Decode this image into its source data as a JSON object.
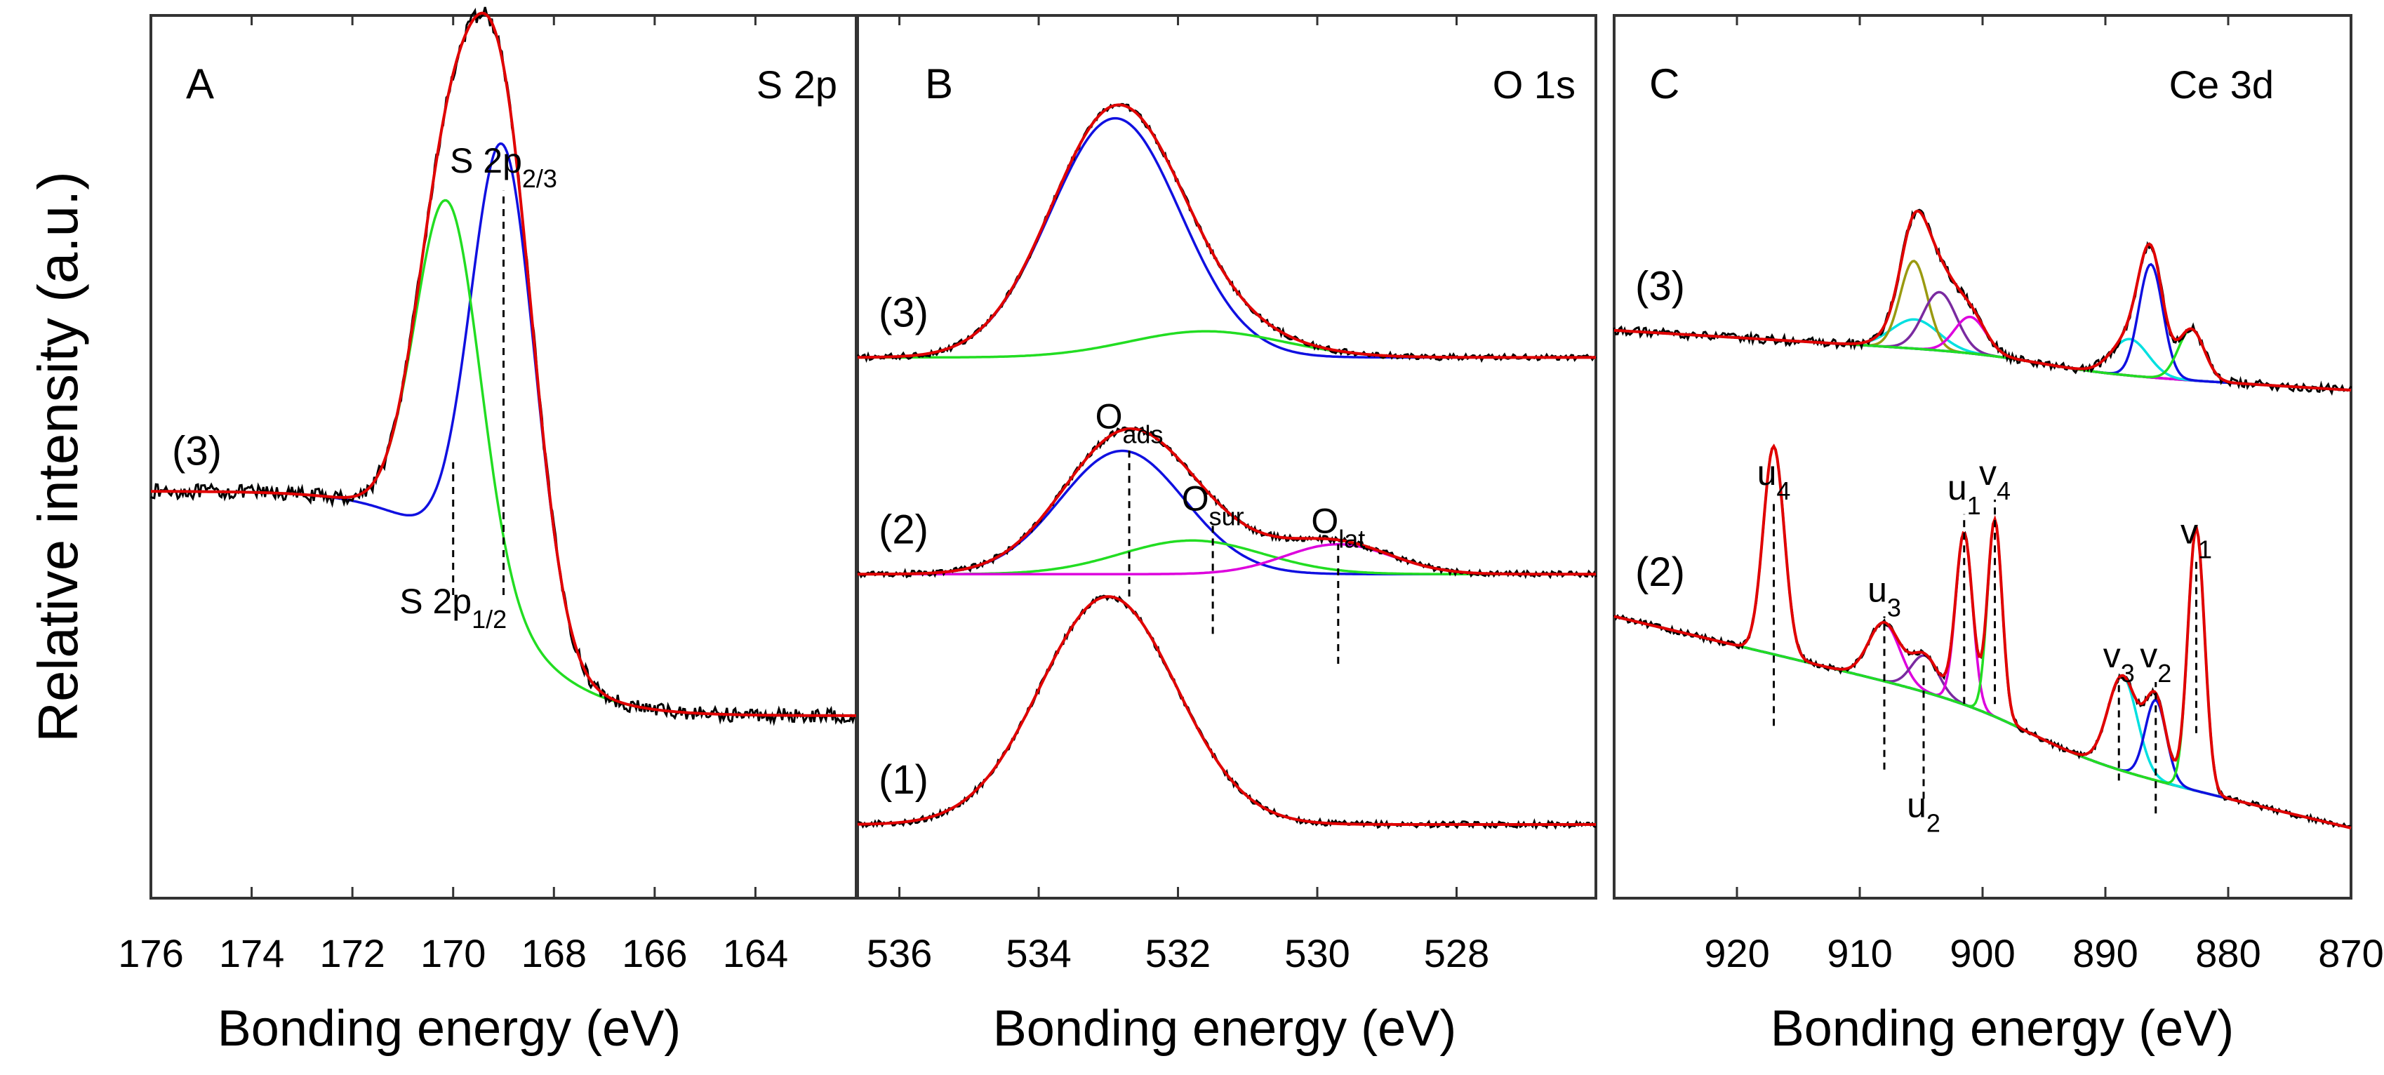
{
  "figure": {
    "ylabel": "Relative intensity (a.u.)"
  },
  "colors": {
    "measured": "#000000",
    "envelope": "#e00000",
    "blue": "#1010e0",
    "green": "#22dd22",
    "magenta": "#dd00dd",
    "cyan": "#00e0e0",
    "olive": "#9a9a10",
    "purple": "#7a2aa0",
    "axis": "#333333"
  },
  "chart_data": [
    {
      "type": "line",
      "panel": "A",
      "region": "S 2p",
      "xlabel": "Bonding energy (eV)",
      "xlim": [
        176,
        162
      ],
      "xticks": [
        176,
        174,
        172,
        170,
        168,
        166,
        164
      ],
      "x_reversed": true,
      "y_units": "relative intensity (a.u., normalized 0-1)",
      "ylim": [
        0,
        1
      ],
      "baseline_left": 0.372,
      "baseline_right": 0.0,
      "spectra": [
        {
          "label": "(3)",
          "offset": 0.0,
          "noise": 0.012,
          "components": [
            {
              "color": "blue",
              "center": 169.0,
              "fwhm": 1.5,
              "height": 0.78
            },
            {
              "color": "green",
              "center": 170.1,
              "fwhm": 1.5,
              "height": 0.58
            }
          ]
        }
      ],
      "annotations": [
        {
          "text": "S 2p",
          "sub": "2/3",
          "x": 169.0,
          "marker_from": 0.2,
          "marker_to": 0.87,
          "label_y": 0.9
        },
        {
          "text": "S 2p",
          "sub": "1/2",
          "x": 170.0,
          "marker_from": 0.2,
          "marker_to": 0.42,
          "label_y": 0.17
        }
      ]
    },
    {
      "type": "line",
      "panel": "B",
      "region": "O 1s",
      "xlabel": "Bonding energy (eV)",
      "xlim": [
        536.6,
        526.0
      ],
      "xticks": [
        536,
        534,
        532,
        530,
        528
      ],
      "x_reversed": true,
      "y_units": "relative intensity (a.u., normalized 0-1)",
      "ylim": [
        0,
        1
      ],
      "baseline_left": 0.0,
      "baseline_right": 0.0,
      "spectra": [
        {
          "label": "(3)",
          "offset": 0.625,
          "noise": 0.004,
          "components": [
            {
              "color": "blue",
              "center": 532.9,
              "fwhm": 2.2,
              "height": 0.32
            },
            {
              "color": "green",
              "center": 531.6,
              "fwhm": 2.6,
              "height": 0.035
            }
          ]
        },
        {
          "label": "(2)",
          "offset": 0.335,
          "noise": 0.004,
          "components": [
            {
              "color": "blue",
              "center": 532.8,
              "fwhm": 2.1,
              "height": 0.165
            },
            {
              "color": "green",
              "center": 531.8,
              "fwhm": 2.4,
              "height": 0.045
            },
            {
              "color": "magenta",
              "center": 529.7,
              "fwhm": 1.8,
              "height": 0.04
            }
          ]
        },
        {
          "label": "(1)",
          "offset": 0.0,
          "noise": 0.004,
          "components": [
            {
              "color": "red",
              "center": 533.0,
              "fwhm": 2.3,
              "height": 0.305
            }
          ]
        }
      ],
      "annotations": [
        {
          "text": "O",
          "sub": "ads",
          "x": 532.7,
          "marker_from": 0.305,
          "marker_to": 0.505,
          "label_y": 0.53
        },
        {
          "text": "O",
          "sub": "sur",
          "x": 531.5,
          "marker_from": 0.255,
          "marker_to": 0.4,
          "label_y": 0.42
        },
        {
          "text": "O",
          "sub": "lat",
          "x": 529.7,
          "marker_from": 0.215,
          "marker_to": 0.375,
          "label_y": 0.39
        }
      ]
    },
    {
      "type": "line",
      "panel": "C",
      "region": "Ce 3d",
      "xlabel": "Bonding energy (eV)",
      "xlim": [
        930.0,
        870.0
      ],
      "xticks": [
        920,
        910,
        900,
        890,
        880,
        870
      ],
      "x_reversed": true,
      "y_units": "relative intensity (a.u., normalized 0-1)",
      "ylim": [
        0,
        1
      ],
      "baseline_left": 0.0,
      "baseline_right": 0.0,
      "spectra": [
        {
          "label": "(3)",
          "offset": 0.6,
          "baseline_left": 0.06,
          "baseline_right": 0.0,
          "baseline_step": {
            "center": 895.0,
            "width": 3.0,
            "height": 0.022
          },
          "noise": 0.006,
          "components": [
            {
              "color": "cyan",
              "center": 905.5,
              "fwhm": 4.5,
              "height": 0.04
            },
            {
              "color": "olive",
              "center": 905.6,
              "fwhm": 2.6,
              "height": 0.12
            },
            {
              "color": "purple",
              "center": 903.5,
              "fwhm": 3.2,
              "height": 0.08
            },
            {
              "color": "magenta",
              "center": 901.0,
              "fwhm": 3.0,
              "height": 0.05
            },
            {
              "color": "cyan",
              "center": 888.0,
              "fwhm": 3.5,
              "height": 0.05
            },
            {
              "color": "blue",
              "center": 886.3,
              "fwhm": 2.3,
              "height": 0.155
            },
            {
              "color": "green",
              "center": 883.0,
              "fwhm": 2.5,
              "height": 0.07
            }
          ]
        },
        {
          "label": "(2)",
          "offset": 0.0,
          "baseline_left": 0.24,
          "baseline_right": 0.0,
          "baseline_step": {
            "center": 896.0,
            "width": 3.0,
            "height": 0.05
          },
          "noise": 0.004,
          "components": [
            {
              "color": "green",
              "center": 917.0,
              "fwhm": 2.0,
              "height": 0.285
            },
            {
              "color": "magenta",
              "center": 908.0,
              "fwhm": 3.0,
              "height": 0.08
            },
            {
              "color": "purple",
              "center": 904.7,
              "fwhm": 2.6,
              "height": 0.05
            },
            {
              "color": "magenta",
              "center": 901.5,
              "fwhm": 1.6,
              "height": 0.235
            },
            {
              "color": "green",
              "center": 899.0,
              "fwhm": 1.4,
              "height": 0.27
            },
            {
              "color": "cyan",
              "center": 888.6,
              "fwhm": 2.8,
              "height": 0.13
            },
            {
              "color": "blue",
              "center": 885.9,
              "fwhm": 2.0,
              "height": 0.11
            },
            {
              "color": "green",
              "center": 882.6,
              "fwhm": 1.6,
              "height": 0.36
            }
          ]
        }
      ],
      "annotations": [
        {
          "text": "u",
          "sub": "4",
          "x": 917.0,
          "marker_from": 0.14,
          "marker_to": 0.45,
          "label_y": 0.47
        },
        {
          "text": "u",
          "sub": "3",
          "x": 908.0,
          "marker_from": 0.08,
          "marker_to": 0.29,
          "label_y": 0.31
        },
        {
          "text": "u",
          "sub": "2",
          "x": 904.8,
          "marker_from": 0.04,
          "marker_to": 0.23,
          "label_y": 0.015
        },
        {
          "text": "u",
          "sub": "1",
          "x": 901.5,
          "marker_from": 0.17,
          "marker_to": 0.43,
          "label_y": 0.45
        },
        {
          "text": "v",
          "sub": "4",
          "x": 899.0,
          "marker_from": 0.17,
          "marker_to": 0.45,
          "label_y": 0.47
        },
        {
          "text": "v",
          "sub": "3",
          "x": 888.9,
          "marker_from": 0.065,
          "marker_to": 0.205,
          "label_y": 0.22
        },
        {
          "text": "v",
          "sub": "2",
          "x": 885.9,
          "marker_from": 0.02,
          "marker_to": 0.2,
          "label_y": 0.22
        },
        {
          "text": "v",
          "sub": "1",
          "x": 882.6,
          "marker_from": 0.13,
          "marker_to": 0.37,
          "label_y": 0.39
        }
      ]
    }
  ]
}
